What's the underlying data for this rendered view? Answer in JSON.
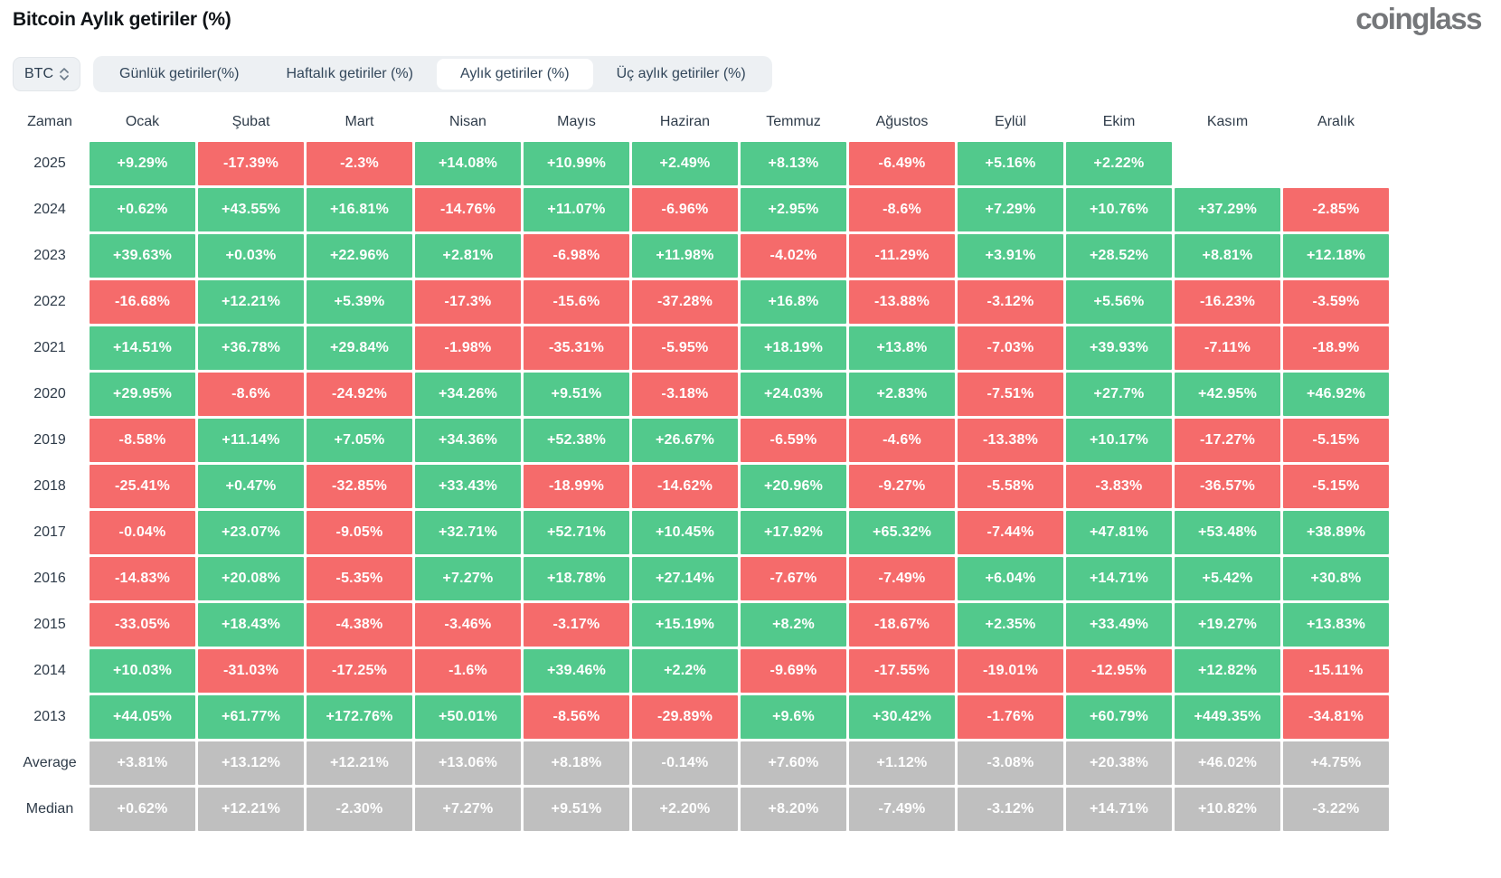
{
  "page": {
    "title": "Bitcoin Aylık getiriler (%)",
    "logo": "coinglass"
  },
  "controls": {
    "symbol_select": {
      "value": "BTC"
    },
    "tabs": [
      {
        "name": "daily",
        "label": "Günlük getiriler(%)",
        "active": false
      },
      {
        "name": "weekly",
        "label": "Haftalık getiriler (%)",
        "active": false
      },
      {
        "name": "monthly",
        "label": "Aylık getiriler (%)",
        "active": true
      },
      {
        "name": "quarterly",
        "label": "Üç aylık getiriler (%)",
        "active": false
      }
    ]
  },
  "colors": {
    "positive": "#52c98c",
    "negative": "#f56b6b",
    "neutral": "#bfbfbf",
    "tab_bar_bg": "#edf0f3",
    "tab_active_bg": "#ffffff",
    "text_dark": "#2e3b49"
  },
  "chart_data": {
    "type": "heatmap",
    "title": "Bitcoin Aylık getiriler (%)",
    "time_column_header": "Zaman",
    "categories": [
      "Ocak",
      "Şubat",
      "Mart",
      "Nisan",
      "Mayıs",
      "Haziran",
      "Temmuz",
      "Ağustos",
      "Eylül",
      "Ekim",
      "Kasım",
      "Aralık"
    ],
    "legend": "green = positive monthly return, red = negative monthly return, gray = Average/Median summary rows",
    "rows": [
      {
        "label": "2025",
        "style": "signed",
        "values": [
          "+9.29%",
          "-17.39%",
          "-2.3%",
          "+14.08%",
          "+10.99%",
          "+2.49%",
          "+8.13%",
          "-6.49%",
          "+5.16%",
          "+2.22%",
          null,
          null
        ]
      },
      {
        "label": "2024",
        "style": "signed",
        "values": [
          "+0.62%",
          "+43.55%",
          "+16.81%",
          "-14.76%",
          "+11.07%",
          "-6.96%",
          "+2.95%",
          "-8.6%",
          "+7.29%",
          "+10.76%",
          "+37.29%",
          "-2.85%"
        ]
      },
      {
        "label": "2023",
        "style": "signed",
        "values": [
          "+39.63%",
          "+0.03%",
          "+22.96%",
          "+2.81%",
          "-6.98%",
          "+11.98%",
          "-4.02%",
          "-11.29%",
          "+3.91%",
          "+28.52%",
          "+8.81%",
          "+12.18%"
        ]
      },
      {
        "label": "2022",
        "style": "signed",
        "values": [
          "-16.68%",
          "+12.21%",
          "+5.39%",
          "-17.3%",
          "-15.6%",
          "-37.28%",
          "+16.8%",
          "-13.88%",
          "-3.12%",
          "+5.56%",
          "-16.23%",
          "-3.59%"
        ]
      },
      {
        "label": "2021",
        "style": "signed",
        "values": [
          "+14.51%",
          "+36.78%",
          "+29.84%",
          "-1.98%",
          "-35.31%",
          "-5.95%",
          "+18.19%",
          "+13.8%",
          "-7.03%",
          "+39.93%",
          "-7.11%",
          "-18.9%"
        ]
      },
      {
        "label": "2020",
        "style": "signed",
        "values": [
          "+29.95%",
          "-8.6%",
          "-24.92%",
          "+34.26%",
          "+9.51%",
          "-3.18%",
          "+24.03%",
          "+2.83%",
          "-7.51%",
          "+27.7%",
          "+42.95%",
          "+46.92%"
        ]
      },
      {
        "label": "2019",
        "style": "signed",
        "values": [
          "-8.58%",
          "+11.14%",
          "+7.05%",
          "+34.36%",
          "+52.38%",
          "+26.67%",
          "-6.59%",
          "-4.6%",
          "-13.38%",
          "+10.17%",
          "-17.27%",
          "-5.15%"
        ]
      },
      {
        "label": "2018",
        "style": "signed",
        "values": [
          "-25.41%",
          "+0.47%",
          "-32.85%",
          "+33.43%",
          "-18.99%",
          "-14.62%",
          "+20.96%",
          "-9.27%",
          "-5.58%",
          "-3.83%",
          "-36.57%",
          "-5.15%"
        ]
      },
      {
        "label": "2017",
        "style": "signed",
        "values": [
          "-0.04%",
          "+23.07%",
          "-9.05%",
          "+32.71%",
          "+52.71%",
          "+10.45%",
          "+17.92%",
          "+65.32%",
          "-7.44%",
          "+47.81%",
          "+53.48%",
          "+38.89%"
        ]
      },
      {
        "label": "2016",
        "style": "signed",
        "values": [
          "-14.83%",
          "+20.08%",
          "-5.35%",
          "+7.27%",
          "+18.78%",
          "+27.14%",
          "-7.67%",
          "-7.49%",
          "+6.04%",
          "+14.71%",
          "+5.42%",
          "+30.8%"
        ]
      },
      {
        "label": "2015",
        "style": "signed",
        "values": [
          "-33.05%",
          "+18.43%",
          "-4.38%",
          "-3.46%",
          "-3.17%",
          "+15.19%",
          "+8.2%",
          "-18.67%",
          "+2.35%",
          "+33.49%",
          "+19.27%",
          "+13.83%"
        ]
      },
      {
        "label": "2014",
        "style": "signed",
        "values": [
          "+10.03%",
          "-31.03%",
          "-17.25%",
          "-1.6%",
          "+39.46%",
          "+2.2%",
          "-9.69%",
          "-17.55%",
          "-19.01%",
          "-12.95%",
          "+12.82%",
          "-15.11%"
        ]
      },
      {
        "label": "2013",
        "style": "signed",
        "values": [
          "+44.05%",
          "+61.77%",
          "+172.76%",
          "+50.01%",
          "-8.56%",
          "-29.89%",
          "+9.6%",
          "+30.42%",
          "-1.76%",
          "+60.79%",
          "+449.35%",
          "-34.81%"
        ]
      },
      {
        "label": "Average",
        "style": "neutral",
        "values": [
          "+3.81%",
          "+13.12%",
          "+12.21%",
          "+13.06%",
          "+8.18%",
          "-0.14%",
          "+7.60%",
          "+1.12%",
          "-3.08%",
          "+20.38%",
          "+46.02%",
          "+4.75%"
        ]
      },
      {
        "label": "Median",
        "style": "neutral",
        "values": [
          "+0.62%",
          "+12.21%",
          "-2.30%",
          "+7.27%",
          "+9.51%",
          "+2.20%",
          "+8.20%",
          "-7.49%",
          "-3.12%",
          "+14.71%",
          "+10.82%",
          "-3.22%"
        ]
      }
    ]
  }
}
